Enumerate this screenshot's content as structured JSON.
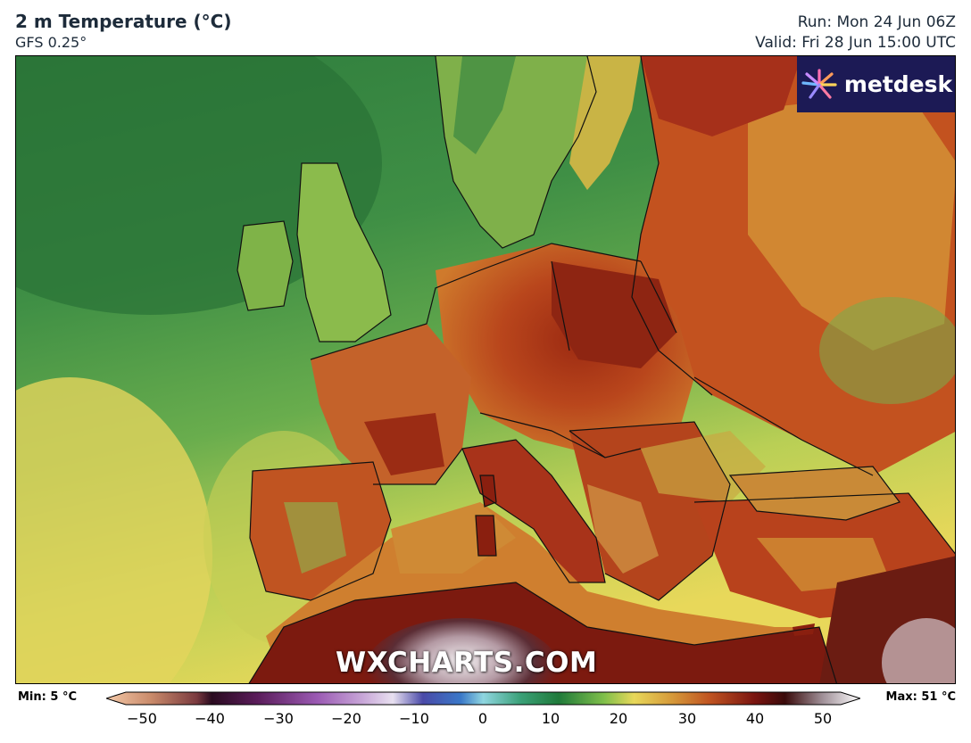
{
  "header": {
    "title": "2 m Temperature (°C)",
    "model": "GFS 0.25°",
    "run": "Run: Mon 24 Jun 06Z",
    "valid": "Valid: Fri 28 Jun 15:00 UTC"
  },
  "logo": {
    "text": "metdesk"
  },
  "watermark": "WXCHARTS.COM",
  "legend": {
    "min_label": "Min: 5 °C",
    "max_label": "Max: 51 °C",
    "ticks": [
      "−50",
      "−40",
      "−30",
      "−20",
      "−10",
      "0",
      "10",
      "20",
      "30",
      "40",
      "50"
    ],
    "range": [
      -50,
      50
    ]
  },
  "colors": {
    "ocean_cold": "#3f8f4a",
    "ocean_mild": "#7fbf52",
    "ocean_warm": "#e6d95a",
    "land_hot": "#c95a22",
    "land_very_hot": "#8a1f0f",
    "desert_extreme": "#e8e2e6",
    "logo_bg": "#1c1a55"
  }
}
